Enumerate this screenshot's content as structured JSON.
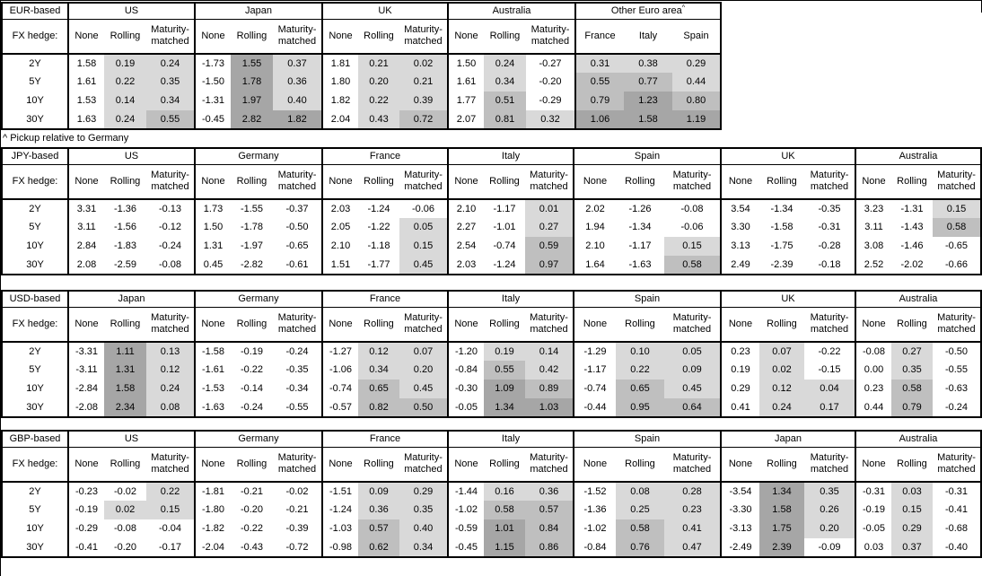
{
  "footnote": "^ Pickup relative to Germany",
  "shading_legend": {
    "rule": "Data cells shaded by value: white if negative, light gray if 0 to 0.5, medium gray if 0.5 to 1.0, dark gray if 1.0 or more. Applies to Rolling and Maturity-matched columns; None column unshaded. All three columns shaded in the Other Euro area block.",
    "negative": "#ffffff",
    "light": "#d9d9d9",
    "medium": "#bfbfbf",
    "dark": "#a6a6a6",
    "thresholds": [
      0,
      0.5,
      1.0
    ],
    "border_color": "#000000"
  },
  "chart_data": [
    {
      "type": "table",
      "base": "EUR-based",
      "hedge_label": "FX hedge:",
      "row_labels": [
        "2Y",
        "5Y",
        "10Y",
        "30Y"
      ],
      "groups": [
        {
          "name": "US",
          "columns": [
            "None",
            "Rolling",
            "Maturity-matched"
          ],
          "shade_all": false,
          "rows": [
            [
              "1.58",
              "0.19",
              "0.24"
            ],
            [
              "1.61",
              "0.22",
              "0.35"
            ],
            [
              "1.53",
              "0.14",
              "0.34"
            ],
            [
              "1.63",
              "0.24",
              "0.55"
            ]
          ]
        },
        {
          "name": "Japan",
          "columns": [
            "None",
            "Rolling",
            "Maturity-matched"
          ],
          "shade_all": false,
          "rows": [
            [
              "-1.73",
              "1.55",
              "0.37"
            ],
            [
              "-1.50",
              "1.78",
              "0.36"
            ],
            [
              "-1.31",
              "1.97",
              "0.40"
            ],
            [
              "-0.45",
              "2.82",
              "1.82"
            ]
          ]
        },
        {
          "name": "UK",
          "columns": [
            "None",
            "Rolling",
            "Maturity-matched"
          ],
          "shade_all": false,
          "rows": [
            [
              "1.81",
              "0.21",
              "0.02"
            ],
            [
              "1.80",
              "0.20",
              "0.21"
            ],
            [
              "1.82",
              "0.22",
              "0.39"
            ],
            [
              "2.04",
              "0.43",
              "0.72"
            ]
          ]
        },
        {
          "name": "Australia",
          "columns": [
            "None",
            "Rolling",
            "Maturity-matched"
          ],
          "shade_all": false,
          "rows": [
            [
              "1.50",
              "0.24",
              "-0.27"
            ],
            [
              "1.61",
              "0.34",
              "-0.20"
            ],
            [
              "1.77",
              "0.51",
              "-0.29"
            ],
            [
              "2.07",
              "0.81",
              "0.32"
            ]
          ]
        },
        {
          "name": "Other Euro area",
          "superscript": "^",
          "columns": [
            "France",
            "Italy",
            "Spain"
          ],
          "shade_all": true,
          "rows": [
            [
              "0.31",
              "0.38",
              "0.29"
            ],
            [
              "0.55",
              "0.77",
              "0.44"
            ],
            [
              "0.79",
              "1.23",
              "0.80"
            ],
            [
              "1.06",
              "1.58",
              "1.19"
            ]
          ]
        }
      ]
    },
    {
      "type": "table",
      "base": "JPY-based",
      "hedge_label": "FX hedge:",
      "row_labels": [
        "2Y",
        "5Y",
        "10Y",
        "30Y"
      ],
      "groups": [
        {
          "name": "US",
          "columns": [
            "None",
            "Rolling",
            "Maturity-matched"
          ],
          "shade_all": false,
          "rows": [
            [
              "3.31",
              "-1.36",
              "-0.13"
            ],
            [
              "3.11",
              "-1.56",
              "-0.12"
            ],
            [
              "2.84",
              "-1.83",
              "-0.24"
            ],
            [
              "2.08",
              "-2.59",
              "-0.08"
            ]
          ]
        },
        {
          "name": "Germany",
          "columns": [
            "None",
            "Rolling",
            "Maturity-matched"
          ],
          "shade_all": false,
          "rows": [
            [
              "1.73",
              "-1.55",
              "-0.37"
            ],
            [
              "1.50",
              "-1.78",
              "-0.50"
            ],
            [
              "1.31",
              "-1.97",
              "-0.65"
            ],
            [
              "0.45",
              "-2.82",
              "-0.61"
            ]
          ]
        },
        {
          "name": "France",
          "columns": [
            "None",
            "Rolling",
            "Maturity-matched"
          ],
          "shade_all": false,
          "rows": [
            [
              "2.03",
              "-1.24",
              "-0.06"
            ],
            [
              "2.05",
              "-1.22",
              "0.05"
            ],
            [
              "2.10",
              "-1.18",
              "0.15"
            ],
            [
              "1.51",
              "-1.77",
              "0.45"
            ]
          ]
        },
        {
          "name": "Italy",
          "columns": [
            "None",
            "Rolling",
            "Maturity-matched"
          ],
          "shade_all": false,
          "rows": [
            [
              "2.10",
              "-1.17",
              "0.01"
            ],
            [
              "2.27",
              "-1.01",
              "0.27"
            ],
            [
              "2.54",
              "-0.74",
              "0.59"
            ],
            [
              "2.03",
              "-1.24",
              "0.97"
            ]
          ]
        },
        {
          "name": "Spain",
          "columns": [
            "None",
            "Rolling",
            "Maturity-matched"
          ],
          "shade_all": false,
          "rows": [
            [
              "2.02",
              "-1.26",
              "-0.08"
            ],
            [
              "1.94",
              "-1.34",
              "-0.06"
            ],
            [
              "2.10",
              "-1.17",
              "0.15"
            ],
            [
              "1.64",
              "-1.63",
              "0.58"
            ]
          ]
        },
        {
          "name": "UK",
          "columns": [
            "None",
            "Rolling",
            "Maturity-matched"
          ],
          "shade_all": false,
          "rows": [
            [
              "3.54",
              "-1.34",
              "-0.35"
            ],
            [
              "3.30",
              "-1.58",
              "-0.31"
            ],
            [
              "3.13",
              "-1.75",
              "-0.28"
            ],
            [
              "2.49",
              "-2.39",
              "-0.18"
            ]
          ]
        },
        {
          "name": "Australia",
          "columns": [
            "None",
            "Rolling",
            "Maturity-matched"
          ],
          "shade_all": false,
          "rows": [
            [
              "3.23",
              "-1.31",
              "0.15"
            ],
            [
              "3.11",
              "-1.43",
              "0.58"
            ],
            [
              "3.08",
              "-1.46",
              "-0.65"
            ],
            [
              "2.52",
              "-2.02",
              "-0.66"
            ]
          ]
        }
      ]
    },
    {
      "type": "table",
      "base": "USD-based",
      "hedge_label": "FX hedge:",
      "row_labels": [
        "2Y",
        "5Y",
        "10Y",
        "30Y"
      ],
      "groups": [
        {
          "name": "Japan",
          "columns": [
            "None",
            "Rolling",
            "Maturity-matched"
          ],
          "shade_all": false,
          "rows": [
            [
              "-3.31",
              "1.11",
              "0.13"
            ],
            [
              "-3.11",
              "1.31",
              "0.12"
            ],
            [
              "-2.84",
              "1.58",
              "0.24"
            ],
            [
              "-2.08",
              "2.34",
              "0.08"
            ]
          ]
        },
        {
          "name": "Germany",
          "columns": [
            "None",
            "Rolling",
            "Maturity-matched"
          ],
          "shade_all": false,
          "rows": [
            [
              "-1.58",
              "-0.19",
              "-0.24"
            ],
            [
              "-1.61",
              "-0.22",
              "-0.35"
            ],
            [
              "-1.53",
              "-0.14",
              "-0.34"
            ],
            [
              "-1.63",
              "-0.24",
              "-0.55"
            ]
          ]
        },
        {
          "name": "France",
          "columns": [
            "None",
            "Rolling",
            "Maturity-matched"
          ],
          "shade_all": false,
          "rows": [
            [
              "-1.27",
              "0.12",
              "0.07"
            ],
            [
              "-1.06",
              "0.34",
              "0.20"
            ],
            [
              "-0.74",
              "0.65",
              "0.45"
            ],
            [
              "-0.57",
              "0.82",
              "0.50"
            ]
          ]
        },
        {
          "name": "Italy",
          "columns": [
            "None",
            "Rolling",
            "Maturity-matched"
          ],
          "shade_all": false,
          "rows": [
            [
              "-1.20",
              "0.19",
              "0.14"
            ],
            [
              "-0.84",
              "0.55",
              "0.42"
            ],
            [
              "-0.30",
              "1.09",
              "0.89"
            ],
            [
              "-0.05",
              "1.34",
              "1.03"
            ]
          ]
        },
        {
          "name": "Spain",
          "columns": [
            "None",
            "Rolling",
            "Maturity-matched"
          ],
          "shade_all": false,
          "rows": [
            [
              "-1.29",
              "0.10",
              "0.05"
            ],
            [
              "-1.17",
              "0.22",
              "0.09"
            ],
            [
              "-0.74",
              "0.65",
              "0.45"
            ],
            [
              "-0.44",
              "0.95",
              "0.64"
            ]
          ]
        },
        {
          "name": "UK",
          "columns": [
            "None",
            "Rolling",
            "Maturity-matched"
          ],
          "shade_all": false,
          "rows": [
            [
              "0.23",
              "0.07",
              "-0.22"
            ],
            [
              "0.19",
              "0.02",
              "-0.15"
            ],
            [
              "0.29",
              "0.12",
              "0.04"
            ],
            [
              "0.41",
              "0.24",
              "0.17"
            ]
          ]
        },
        {
          "name": "Australia",
          "columns": [
            "None",
            "Rolling",
            "Maturity-matched"
          ],
          "shade_all": false,
          "rows": [
            [
              "-0.08",
              "0.27",
              "-0.50"
            ],
            [
              "0.00",
              "0.35",
              "-0.55"
            ],
            [
              "0.23",
              "0.58",
              "-0.63"
            ],
            [
              "0.44",
              "0.79",
              "-0.24"
            ]
          ]
        }
      ]
    },
    {
      "type": "table",
      "base": "GBP-based",
      "hedge_label": "FX hedge:",
      "row_labels": [
        "2Y",
        "5Y",
        "10Y",
        "30Y"
      ],
      "groups": [
        {
          "name": "US",
          "columns": [
            "None",
            "Rolling",
            "Maturity-matched"
          ],
          "shade_all": false,
          "rows": [
            [
              "-0.23",
              "-0.02",
              "0.22"
            ],
            [
              "-0.19",
              "0.02",
              "0.15"
            ],
            [
              "-0.29",
              "-0.08",
              "-0.04"
            ],
            [
              "-0.41",
              "-0.20",
              "-0.17"
            ]
          ]
        },
        {
          "name": "Germany",
          "columns": [
            "None",
            "Rolling",
            "Maturity-matched"
          ],
          "shade_all": false,
          "rows": [
            [
              "-1.81",
              "-0.21",
              "-0.02"
            ],
            [
              "-1.80",
              "-0.20",
              "-0.21"
            ],
            [
              "-1.82",
              "-0.22",
              "-0.39"
            ],
            [
              "-2.04",
              "-0.43",
              "-0.72"
            ]
          ]
        },
        {
          "name": "France",
          "columns": [
            "None",
            "Rolling",
            "Maturity-matched"
          ],
          "shade_all": false,
          "rows": [
            [
              "-1.51",
              "0.09",
              "0.29"
            ],
            [
              "-1.24",
              "0.36",
              "0.35"
            ],
            [
              "-1.03",
              "0.57",
              "0.40"
            ],
            [
              "-0.98",
              "0.62",
              "0.34"
            ]
          ]
        },
        {
          "name": "Italy",
          "columns": [
            "None",
            "Rolling",
            "Maturity-matched"
          ],
          "shade_all": false,
          "rows": [
            [
              "-1.44",
              "0.16",
              "0.36"
            ],
            [
              "-1.02",
              "0.58",
              "0.57"
            ],
            [
              "-0.59",
              "1.01",
              "0.84"
            ],
            [
              "-0.45",
              "1.15",
              "0.86"
            ]
          ]
        },
        {
          "name": "Spain",
          "columns": [
            "None",
            "Rolling",
            "Maturity-matched"
          ],
          "shade_all": false,
          "rows": [
            [
              "-1.52",
              "0.08",
              "0.28"
            ],
            [
              "-1.36",
              "0.25",
              "0.23"
            ],
            [
              "-1.02",
              "0.58",
              "0.41"
            ],
            [
              "-0.84",
              "0.76",
              "0.47"
            ]
          ]
        },
        {
          "name": "Japan",
          "columns": [
            "None",
            "Rolling",
            "Maturity-matched"
          ],
          "shade_all": false,
          "rows": [
            [
              "-3.54",
              "1.34",
              "0.35"
            ],
            [
              "-3.30",
              "1.58",
              "0.26"
            ],
            [
              "-3.13",
              "1.75",
              "0.20"
            ],
            [
              "-2.49",
              "2.39",
              "-0.09"
            ]
          ]
        },
        {
          "name": "Australia",
          "columns": [
            "None",
            "Rolling",
            "Maturity-matched"
          ],
          "shade_all": false,
          "rows": [
            [
              "-0.31",
              "0.03",
              "-0.31"
            ],
            [
              "-0.19",
              "0.15",
              "-0.41"
            ],
            [
              "-0.05",
              "0.29",
              "-0.68"
            ],
            [
              "0.03",
              "0.37",
              "-0.40"
            ]
          ]
        }
      ]
    }
  ]
}
